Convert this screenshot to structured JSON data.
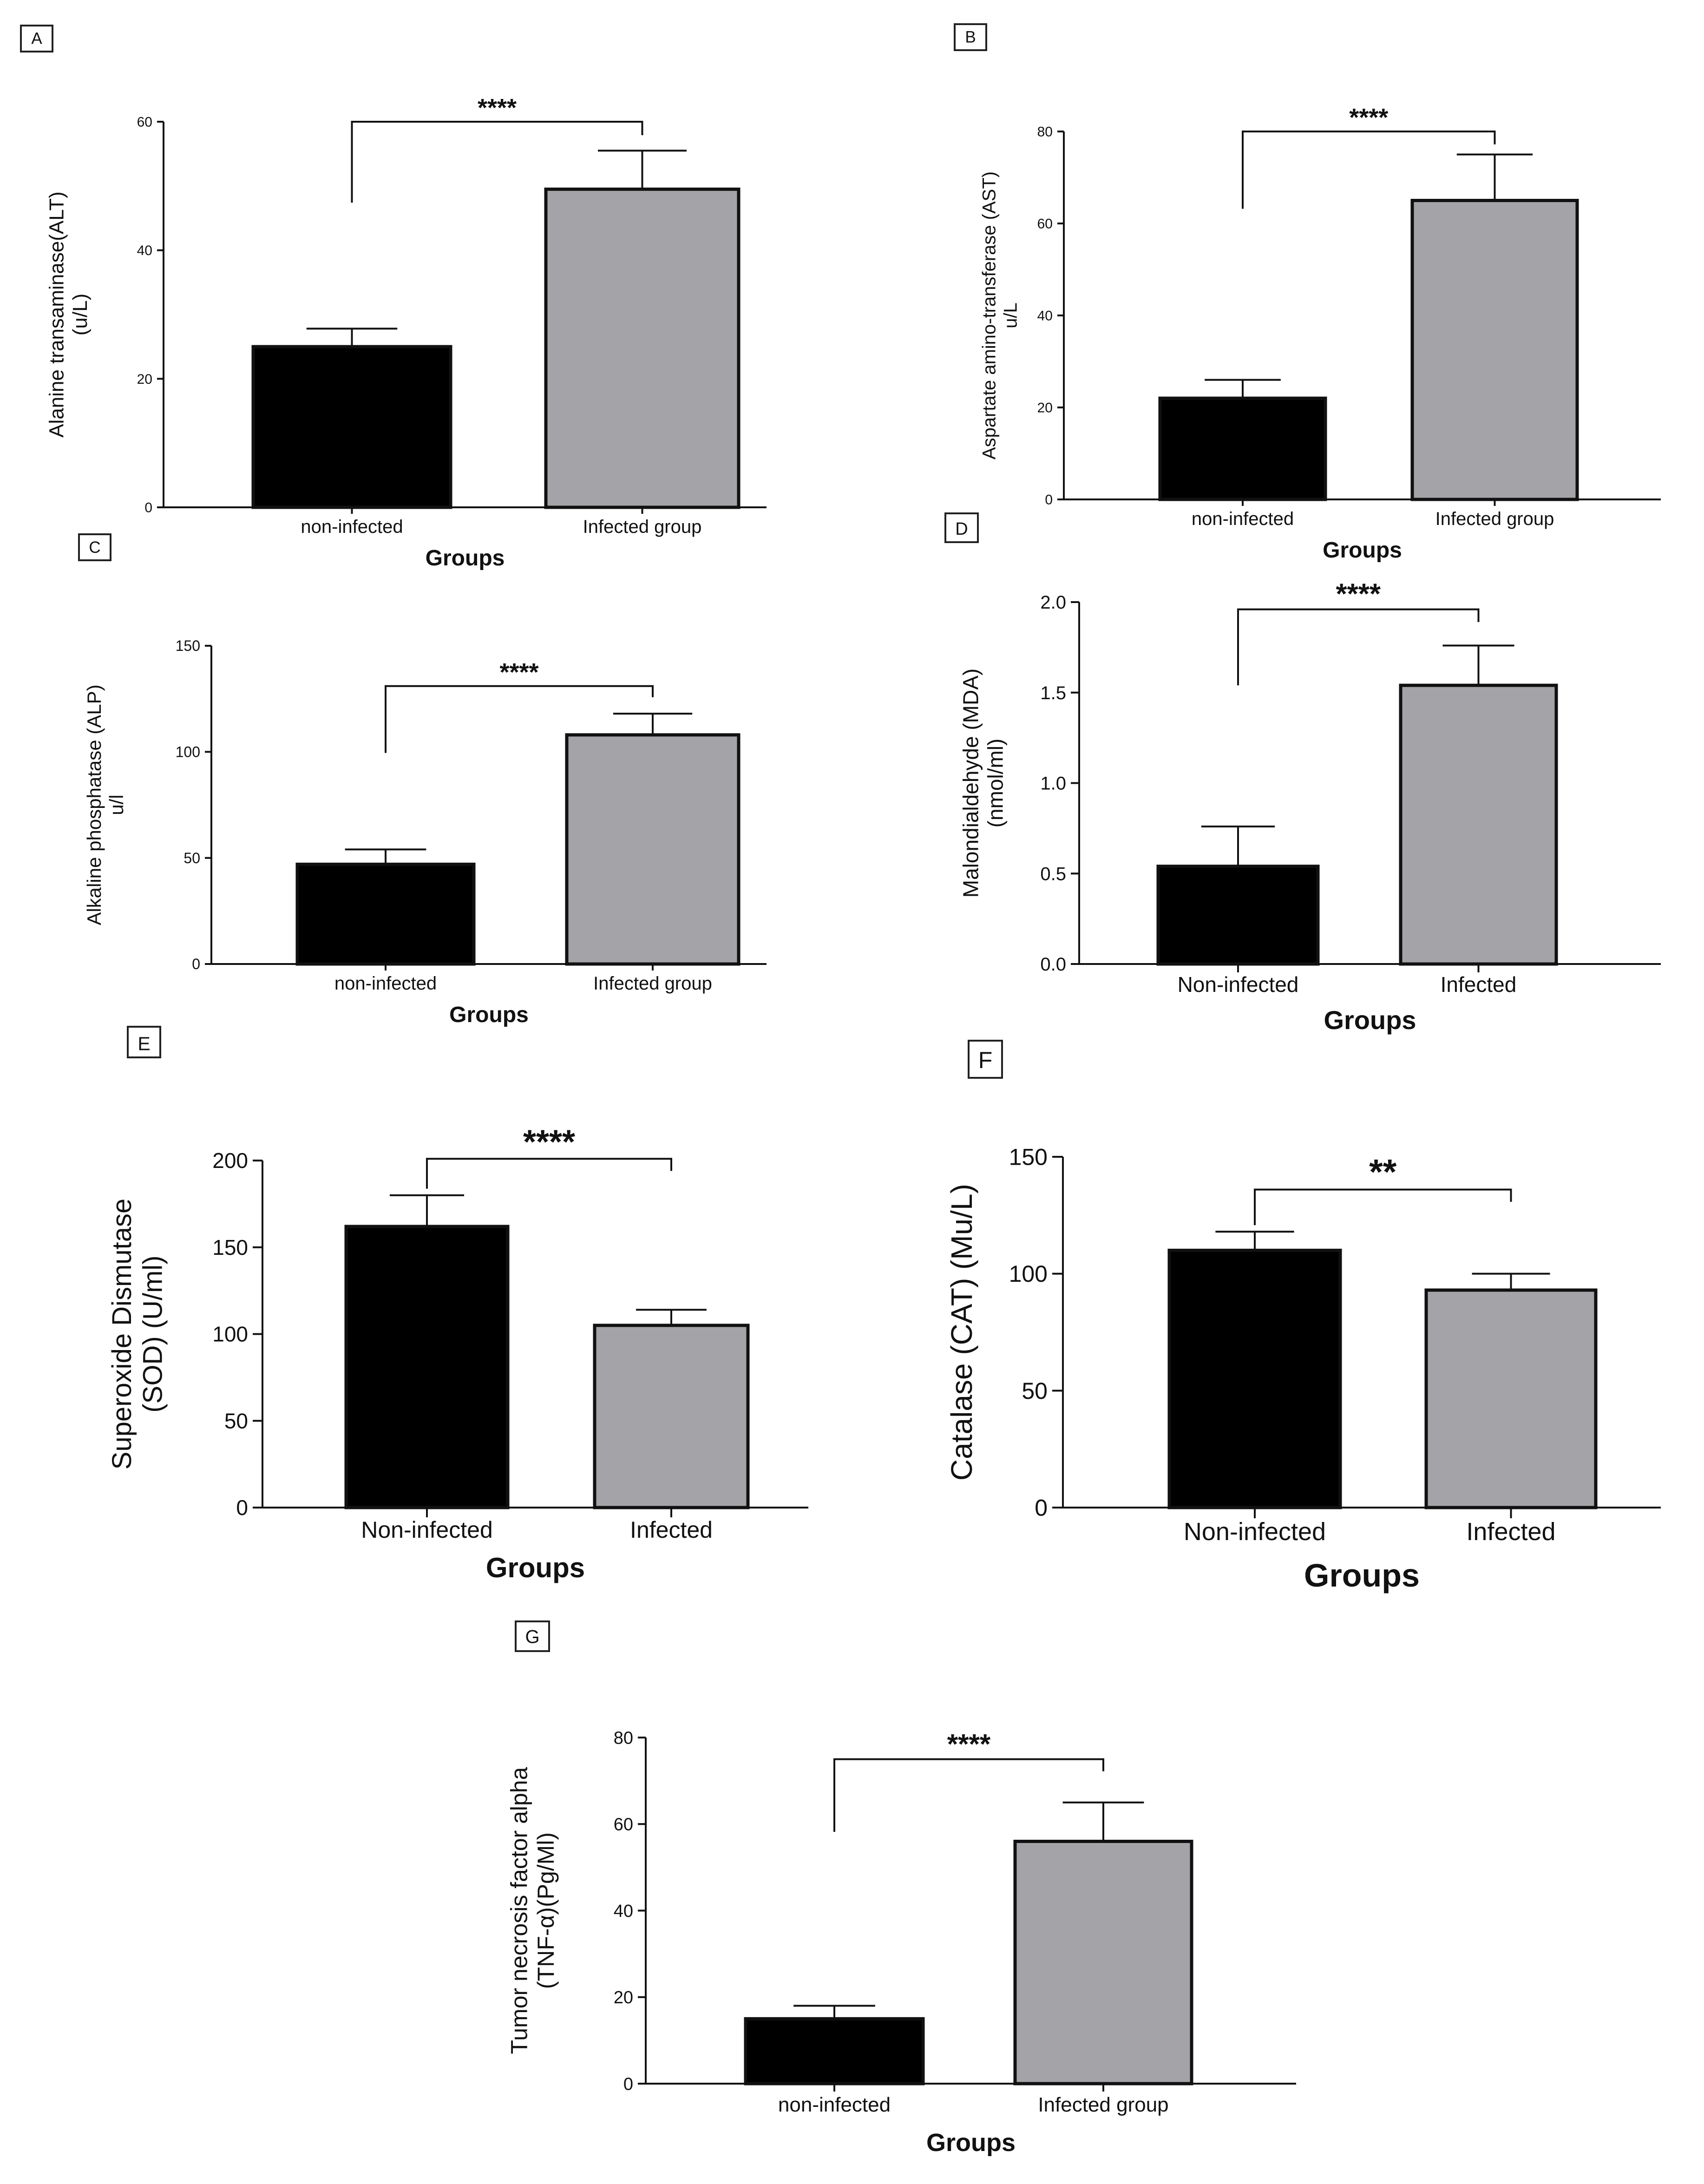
{
  "colors": {
    "control": "#000000",
    "infected": "#a4a3a8",
    "axis": "#111111",
    "background": "#ffffff"
  },
  "chart_data": [
    {
      "panel": "A",
      "type": "bar",
      "categories": [
        "non-infected",
        "Infected group"
      ],
      "values": [
        25,
        49.5
      ],
      "errors": [
        2.8,
        6
      ],
      "ylabel_lines": [
        "Alanine transaminase(ALT)",
        "(u/L)"
      ],
      "xlabel": "Groups",
      "ylim": [
        0,
        60
      ],
      "yticks": [
        "0",
        "20",
        "40",
        "60"
      ],
      "ytick_values": [
        0,
        20,
        40,
        60
      ],
      "significance": "****",
      "bracket_value": 60
    },
    {
      "panel": "B",
      "type": "bar",
      "categories": [
        "non-infected",
        "Infected group"
      ],
      "values": [
        22,
        65
      ],
      "errors": [
        4,
        10
      ],
      "ylabel_lines": [
        "Aspartate amino-transferase (AST)",
        "u/L"
      ],
      "xlabel": "Groups",
      "ylim": [
        0,
        80
      ],
      "yticks": [
        "0",
        "20",
        "40",
        "60",
        "80"
      ],
      "ytick_values": [
        0,
        20,
        40,
        60,
        80
      ],
      "significance": "****",
      "bracket_value": 80
    },
    {
      "panel": "C",
      "type": "bar",
      "categories": [
        "non-infected",
        "Infected group"
      ],
      "values": [
        47,
        108
      ],
      "errors": [
        7,
        10
      ],
      "ylabel_lines": [
        "Alkaline phosphatase (ALP)",
        "u/l"
      ],
      "xlabel": "Groups",
      "ylim": [
        0,
        150
      ],
      "yticks": [
        "0",
        "50",
        "100",
        "150"
      ],
      "ytick_values": [
        0,
        50,
        100,
        150
      ],
      "significance": "****",
      "bracket_value": 131
    },
    {
      "panel": "D",
      "type": "bar",
      "categories": [
        "Non-infected",
        "Infected"
      ],
      "values": [
        0.54,
        1.54
      ],
      "errors": [
        0.22,
        0.22
      ],
      "ylabel_lines": [
        "Malondialdehyde (MDA)",
        "(nmol/ml)"
      ],
      "xlabel": "Groups",
      "ylim": [
        0,
        2.0
      ],
      "yticks": [
        "0.0",
        "0.5",
        "1.0",
        "1.5",
        "2.0"
      ],
      "ytick_values": [
        0,
        0.5,
        1.0,
        1.5,
        2.0
      ],
      "significance": "****",
      "bracket_value": 1.96
    },
    {
      "panel": "E",
      "type": "bar",
      "categories": [
        "Non-infected",
        "Infected"
      ],
      "values": [
        162,
        105
      ],
      "errors": [
        18,
        9
      ],
      "ylabel_lines": [
        "Superoxide Dismutase",
        "(SOD) (U/ml)"
      ],
      "xlabel": "Groups",
      "ylim": [
        0,
        200
      ],
      "yticks": [
        "0",
        "50",
        "100",
        "150",
        "200"
      ],
      "ytick_values": [
        0,
        50,
        100,
        150,
        200
      ],
      "significance": "****",
      "bracket_value": 201
    },
    {
      "panel": "F",
      "type": "bar",
      "categories": [
        "Non-infected",
        "Infected"
      ],
      "values": [
        110,
        93
      ],
      "errors": [
        8,
        7
      ],
      "ylabel_lines": [
        "Catalase (CAT) (Mu/L)"
      ],
      "xlabel": "Groups",
      "ylim": [
        0,
        150
      ],
      "yticks": [
        "0",
        "50",
        "100",
        "150"
      ],
      "ytick_values": [
        0,
        50,
        100,
        150
      ],
      "significance": "**",
      "bracket_value": 136
    },
    {
      "panel": "G",
      "type": "bar",
      "categories": [
        "non-infected",
        "Infected group"
      ],
      "values": [
        15,
        56
      ],
      "errors": [
        3,
        9
      ],
      "ylabel_lines": [
        "Tumor necrosis factor alpha",
        "(TNF-α)(Pg/Ml)"
      ],
      "xlabel": "Groups",
      "ylim": [
        0,
        80
      ],
      "yticks": [
        "0",
        "20",
        "40",
        "60",
        "80"
      ],
      "ytick_values": [
        0,
        20,
        40,
        60,
        80
      ],
      "significance": "****",
      "bracket_value": 75
    }
  ]
}
